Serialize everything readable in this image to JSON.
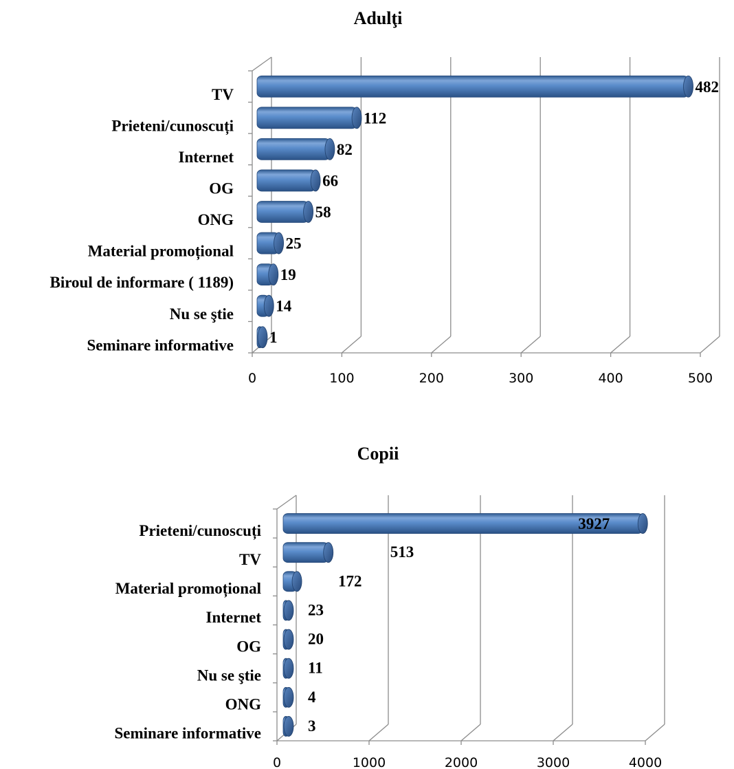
{
  "chart_data": [
    {
      "type": "bar",
      "orientation": "horizontal",
      "title": "Adulţi",
      "categories": [
        "TV",
        "Prieteni/cunoscuți",
        "Internet",
        "OG",
        "ONG",
        "Material promoțional",
        "Biroul de informare ( 1189)",
        "Nu se ştie",
        "Seminare informative"
      ],
      "values": [
        482,
        112,
        82,
        66,
        58,
        25,
        19,
        14,
        1
      ],
      "value_labels": [
        "482",
        "112",
        "82",
        "66",
        "58",
        "25",
        "19",
        "14",
        "1"
      ],
      "xlim": [
        0,
        500
      ],
      "xticks": [
        "0",
        "100",
        "200",
        "300",
        "400",
        "500"
      ],
      "grid": true,
      "bar_color": "#4A7EBB",
      "style": "3d-cylinder"
    },
    {
      "type": "bar",
      "orientation": "horizontal",
      "title": "Copii",
      "categories": [
        "Prieteni/cunoscuți",
        "TV",
        "Material promoțional",
        "Internet",
        "OG",
        "Nu se ştie",
        "ONG",
        "Seminare informative"
      ],
      "values": [
        3927,
        513,
        172,
        23,
        20,
        11,
        4,
        3
      ],
      "value_labels": [
        "3927",
        "513",
        "172",
        "23",
        "20",
        "11",
        "4",
        "3"
      ],
      "xlim": [
        0,
        4000
      ],
      "xticks": [
        "0",
        "1000",
        "2000",
        "3000",
        "4000"
      ],
      "grid": true,
      "bar_color": "#4A7EBB",
      "style": "3d-cylinder"
    }
  ]
}
